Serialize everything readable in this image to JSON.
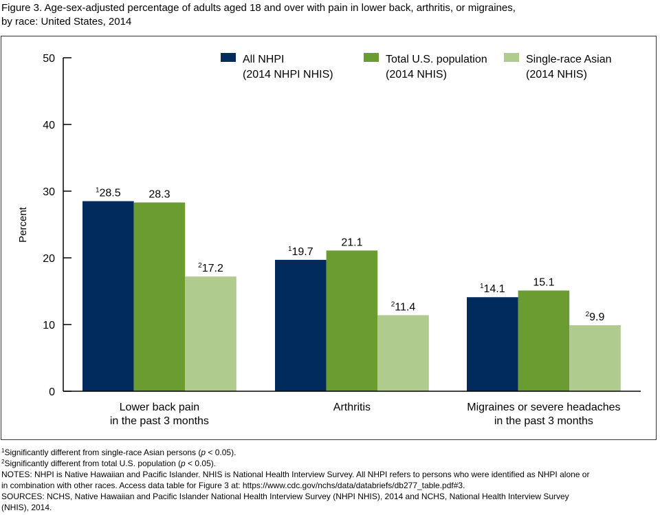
{
  "figure": {
    "title_line1": "Figure 3. Age-sex-adjusted percentage of adults aged 18 and over with pain in lower back, arthritis, or migraines,",
    "title_line2": "by race: United States, 2014"
  },
  "chart_data": {
    "type": "bar",
    "title": "Figure 3. Age-sex-adjusted percentage of adults aged 18 and over with pain in lower back, arthritis, or migraines, by race: United States, 2014",
    "xlabel": "",
    "ylabel": "Percent",
    "ylim": [
      0,
      50
    ],
    "yticks": [
      0,
      10,
      20,
      30,
      40,
      50
    ],
    "grid": false,
    "legend_position": "top-right",
    "categories": [
      [
        "Lower back pain",
        "in the past 3 months"
      ],
      [
        "Arthritis"
      ],
      [
        "Migraines or severe headaches",
        "in the past 3 months"
      ]
    ],
    "series": [
      {
        "name": "All NHPI",
        "name_line2": "(2014 NHPI NHIS)",
        "color": "#002b5c",
        "values": [
          28.5,
          19.7,
          14.1
        ],
        "label_sup": [
          "1",
          "1",
          "1"
        ]
      },
      {
        "name": "Total U.S. population",
        "name_line2": "(2014 NHIS)",
        "color": "#6a9c32",
        "values": [
          28.3,
          21.1,
          15.1
        ],
        "label_sup": [
          "",
          "",
          ""
        ]
      },
      {
        "name": "Single-race Asian",
        "name_line2": "(2014 NHIS)",
        "color": "#b0cb8e",
        "values": [
          17.2,
          11.4,
          9.9
        ],
        "label_sup": [
          "2",
          "2",
          "2"
        ]
      }
    ]
  },
  "footnotes": {
    "fn1_sup": "1",
    "fn1_text_a": "Significantly different from single-race Asian persons (",
    "fn1_p": "p",
    "fn1_text_b": " < 0.05).",
    "fn2_sup": "2",
    "fn2_text_a": "Significantly different from total U.S. population (",
    "fn2_p": "p",
    "fn2_text_b": " < 0.05).",
    "notes_line1": "NOTES: NHPI is Native Hawaiian and Pacific Islander. NHIS is National Health Interview Survey. All NHPI refers to persons who were identified as NHPI alone or",
    "notes_line2": "in combination with other races. Access data table for Figure 3 at: https://www.cdc.gov/nchs/data/databriefs/db277_table.pdf#3.",
    "sources_line1": "SOURCES: NCHS, Native Hawaiian and Pacific Islander National Health Interview Survey (NHPI NHIS), 2014 and NCHS, National Health Interview Survey",
    "sources_line2": "(NHIS), 2014."
  }
}
